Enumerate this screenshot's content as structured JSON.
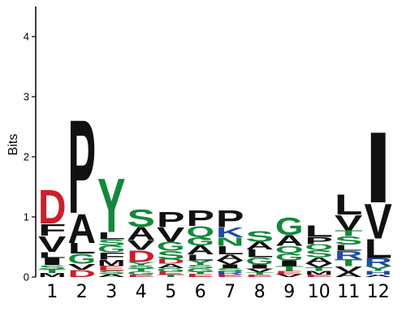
{
  "chart_data": {
    "type": "sequence-logo",
    "ylabel": "Bits",
    "ylim": [
      0,
      4.5
    ],
    "yticks": [
      0,
      1,
      2,
      3,
      4
    ],
    "positions": [
      "1",
      "2",
      "3",
      "4",
      "5",
      "6",
      "7",
      "8",
      "9",
      "10",
      "11",
      "12"
    ],
    "colors": {
      "hydrophobic": "#111111",
      "polar": "#13893a",
      "acidic": "#cc1f2a",
      "basic": "#1f4ea1",
      "other": "#d98aa0"
    },
    "letter_colors": {
      "A": "#111111",
      "V": "#111111",
      "L": "#111111",
      "I": "#111111",
      "P": "#111111",
      "F": "#111111",
      "M": "#111111",
      "W": "#111111",
      "G": "#13893a",
      "S": "#13893a",
      "T": "#13893a",
      "Y": "#13893a",
      "Q": "#13893a",
      "N": "#13893a",
      "C": "#13893a",
      "D": "#cc1f2a",
      "E": "#cc1f2a",
      "K": "#1f4ea1",
      "R": "#1f4ea1",
      "H": "#1f4ea1"
    },
    "stacks": [
      [
        [
          "M",
          0.07
        ],
        [
          "T",
          0.06
        ],
        [
          "S",
          0.07
        ],
        [
          "I",
          0.12
        ],
        [
          "L",
          0.1
        ],
        [
          "V",
          0.27
        ],
        [
          "F",
          0.2
        ],
        [
          "D",
          0.58
        ]
      ],
      [
        [
          "D",
          0.12
        ],
        [
          "V",
          0.1
        ],
        [
          "G",
          0.17
        ],
        [
          "L",
          0.18
        ],
        [
          "A",
          0.5
        ],
        [
          "P",
          1.6
        ]
      ],
      [
        [
          "A",
          0.05
        ],
        [
          "S",
          0.06
        ],
        [
          "E",
          0.08
        ],
        [
          "M",
          0.1
        ],
        [
          "F",
          0.12
        ],
        [
          "G",
          0.12
        ],
        [
          "S",
          0.1
        ],
        [
          "L",
          0.12
        ],
        [
          "Y",
          0.92
        ]
      ],
      [
        [
          "E",
          0.04
        ],
        [
          "G",
          0.05
        ],
        [
          "T",
          0.05
        ],
        [
          "S",
          0.05
        ],
        [
          "Y",
          0.06
        ],
        [
          "D",
          0.2
        ],
        [
          "V",
          0.17
        ],
        [
          "A",
          0.22
        ],
        [
          "S",
          0.3
        ]
      ],
      [
        [
          "T",
          0.04
        ],
        [
          "E",
          0.05
        ],
        [
          "G",
          0.06
        ],
        [
          "A",
          0.07
        ],
        [
          "D",
          0.08
        ],
        [
          "S",
          0.14
        ],
        [
          "G",
          0.15
        ],
        [
          "V",
          0.24
        ],
        [
          "P",
          0.26
        ]
      ],
      [
        [
          "E",
          0.05
        ],
        [
          "T",
          0.04
        ],
        [
          "G",
          0.05
        ],
        [
          "S",
          0.06
        ],
        [
          "Y",
          0.08
        ],
        [
          "L",
          0.1
        ],
        [
          "A",
          0.15
        ],
        [
          "G",
          0.14
        ],
        [
          "Q",
          0.18
        ],
        [
          "P",
          0.27
        ]
      ],
      [
        [
          "E",
          0.04
        ],
        [
          "R",
          0.05
        ],
        [
          "S",
          0.06
        ],
        [
          "I",
          0.06
        ],
        [
          "V",
          0.07
        ],
        [
          "A",
          0.1
        ],
        [
          "L",
          0.14
        ],
        [
          "N",
          0.14
        ],
        [
          "K",
          0.17
        ],
        [
          "P",
          0.29
        ]
      ],
      [
        [
          "E",
          0.04
        ],
        [
          "T",
          0.04
        ],
        [
          "V",
          0.06
        ],
        [
          "I",
          0.07
        ],
        [
          "G",
          0.12
        ],
        [
          "L",
          0.13
        ],
        [
          "A",
          0.13
        ],
        [
          "S",
          0.18
        ]
      ],
      [
        [
          "V",
          0.05
        ],
        [
          "E",
          0.05
        ],
        [
          "T",
          0.08
        ],
        [
          "I",
          0.1
        ],
        [
          "G",
          0.12
        ],
        [
          "Q",
          0.12
        ],
        [
          "A",
          0.18
        ],
        [
          "G",
          0.3
        ]
      ],
      [
        [
          "E",
          0.04
        ],
        [
          "M",
          0.06
        ],
        [
          "T",
          0.06
        ],
        [
          "V",
          0.07
        ],
        [
          "A",
          0.1
        ],
        [
          "S",
          0.12
        ],
        [
          "Q",
          0.1
        ],
        [
          "P",
          0.12
        ],
        [
          "L",
          0.2
        ]
      ],
      [
        [
          "A",
          0.08
        ],
        [
          "V",
          0.1
        ],
        [
          "T",
          0.12
        ],
        [
          "R",
          0.14
        ],
        [
          "L",
          0.1
        ],
        [
          "S",
          0.14
        ],
        [
          "T",
          0.1
        ],
        [
          "V",
          0.26
        ],
        [
          "L",
          0.34
        ]
      ],
      [
        [
          "A",
          0.04
        ],
        [
          "H",
          0.06
        ],
        [
          "Y",
          0.08
        ],
        [
          "R",
          0.14
        ],
        [
          "L",
          0.32
        ],
        [
          "V",
          0.6
        ],
        [
          "I",
          1.21
        ]
      ]
    ]
  }
}
